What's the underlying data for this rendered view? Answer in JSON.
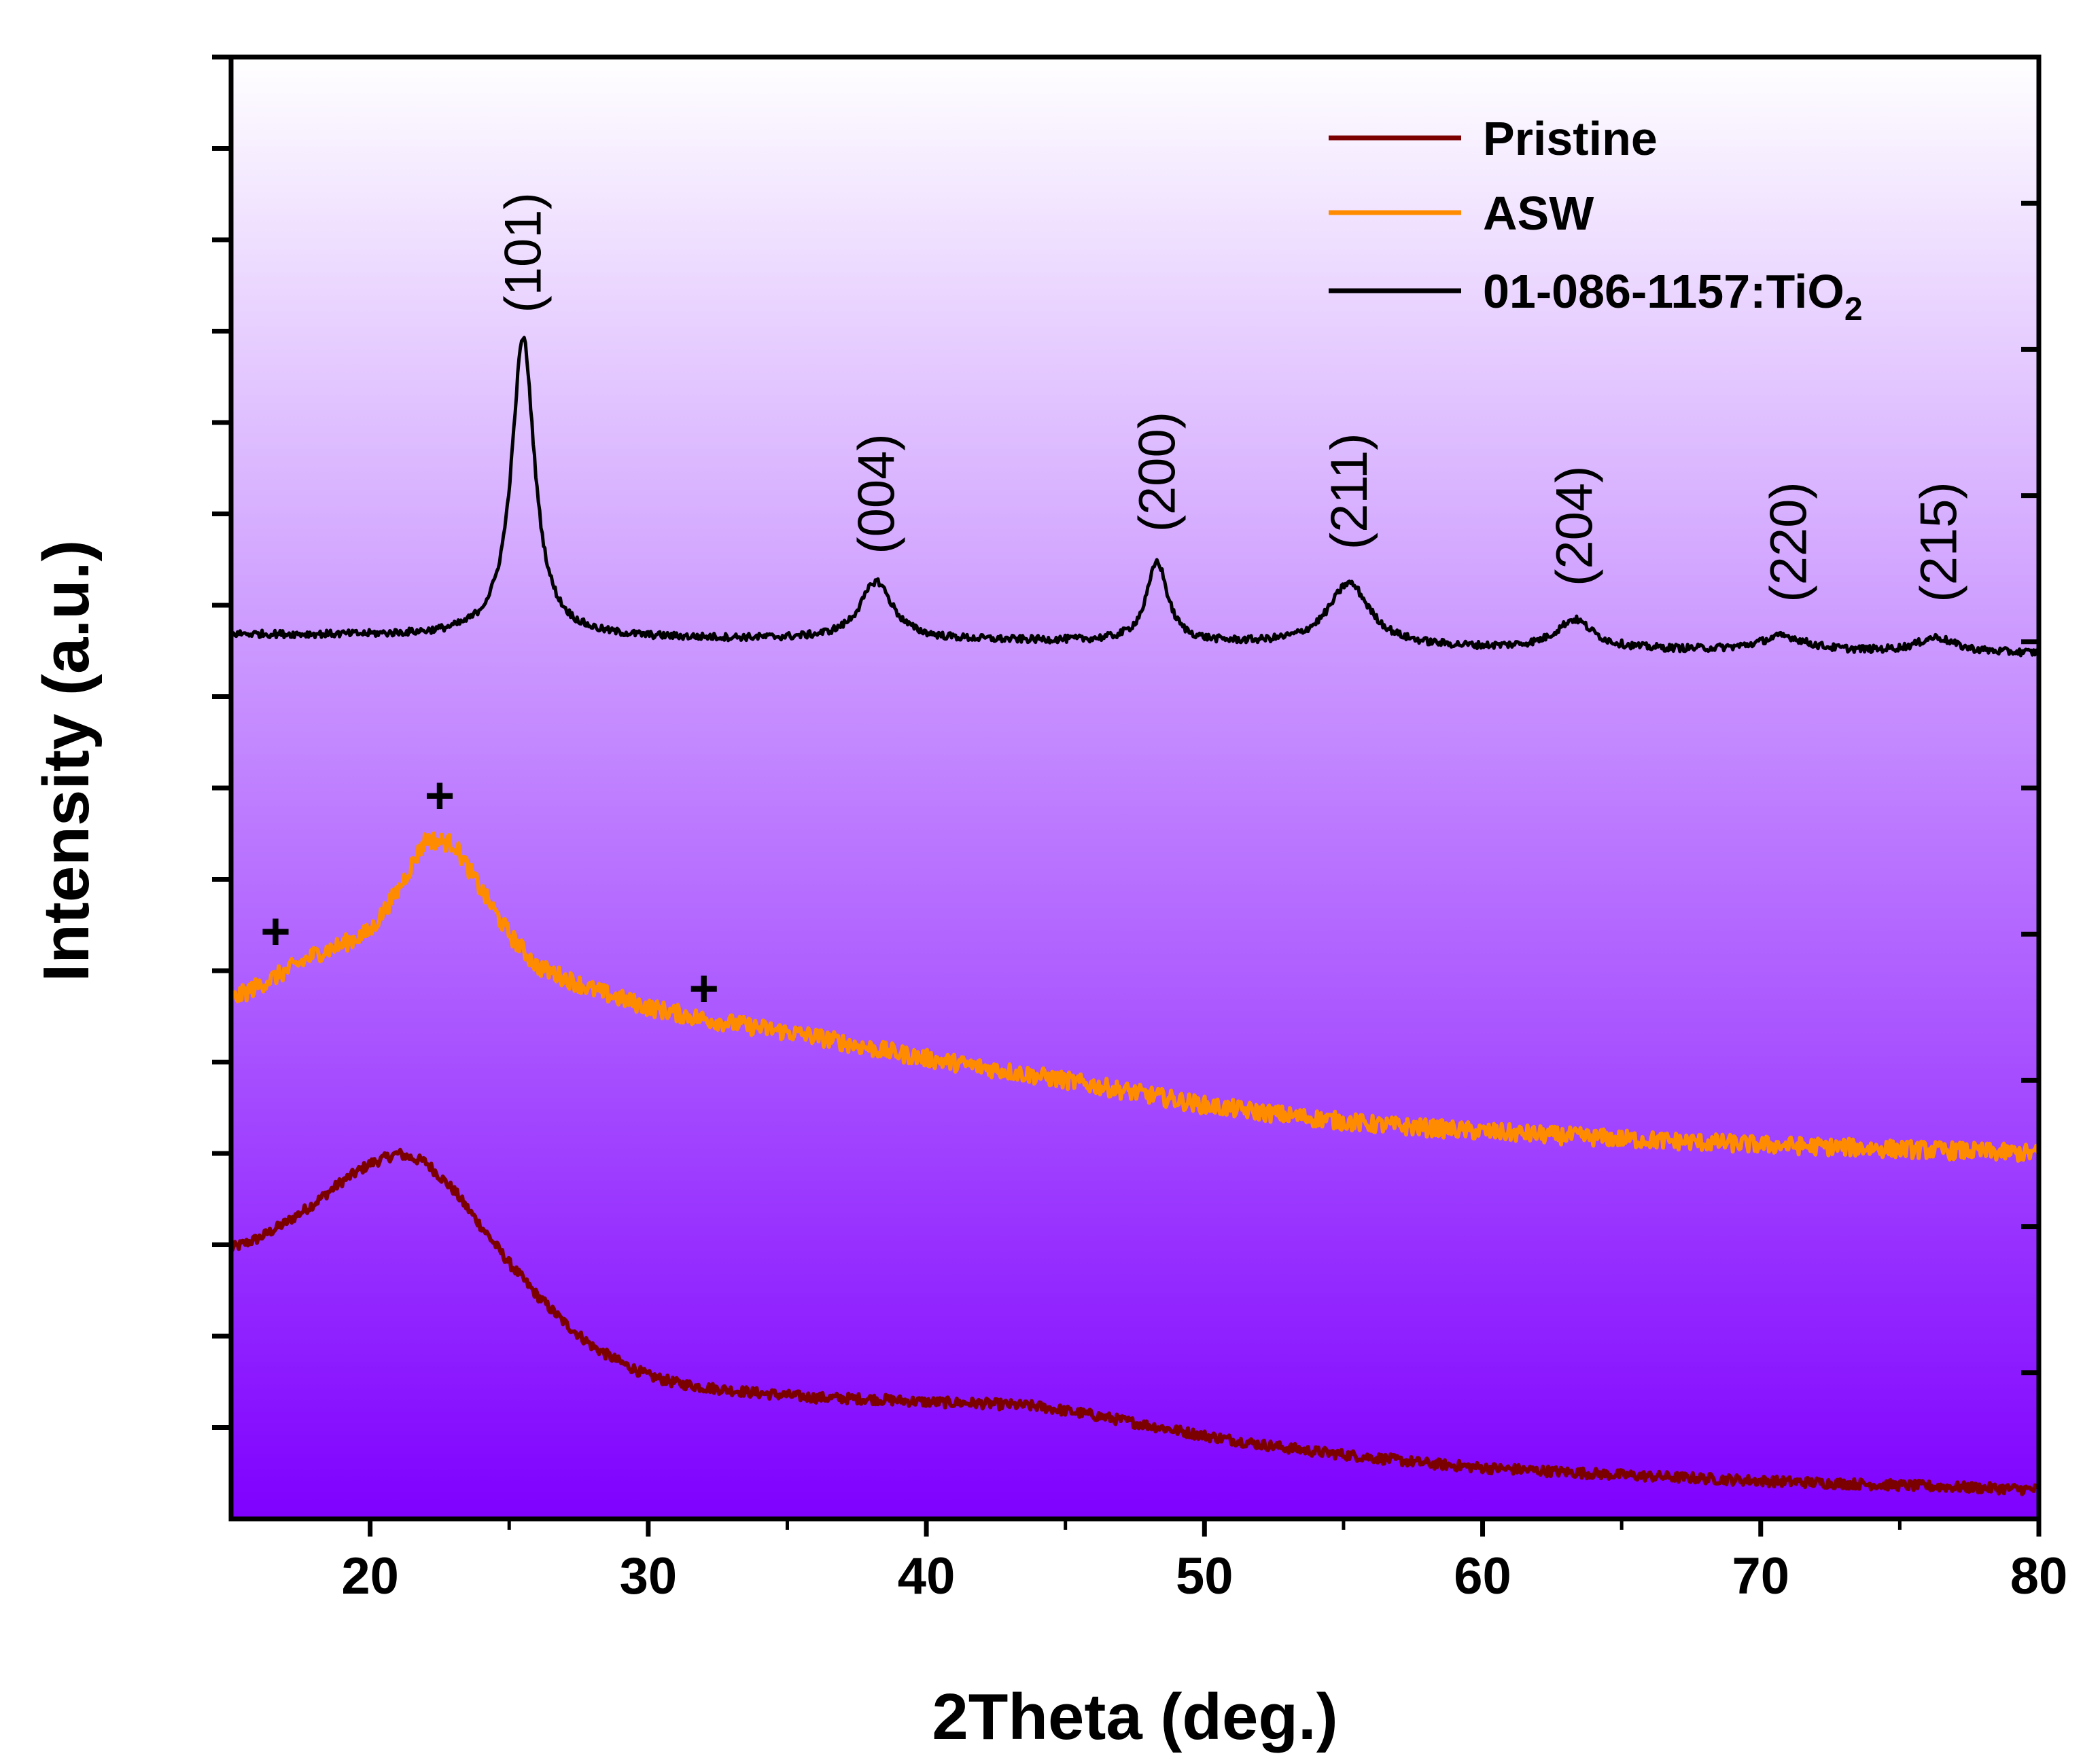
{
  "chart_data": {
    "type": "line",
    "title": "",
    "xlabel": "2Theta (deg.)",
    "ylabel": "Intensity (a.u.)",
    "xlim": [
      15,
      80
    ],
    "ylim": [
      0,
      100
    ],
    "grid": false,
    "x_ticks": [
      20,
      30,
      40,
      50,
      60,
      70,
      80
    ],
    "y_tick_labels": false,
    "background": {
      "top": "#ffffff",
      "bottom": "#7f00ff"
    },
    "legend": {
      "placement": "top-right",
      "entries": [
        {
          "label": "Pristine",
          "color": "#7b0000"
        },
        {
          "label": "ASW",
          "color": "#ff8c00"
        },
        {
          "label_main": "01-086-1157:TiO",
          "label_sub": "2",
          "color": "#000000"
        }
      ]
    },
    "series": [
      {
        "name": "Pristine",
        "color": "#7b0000",
        "baseline": [
          [
            15,
            18.5
          ],
          [
            16,
            19.2
          ],
          [
            17,
            20.3
          ],
          [
            18,
            21.6
          ],
          [
            19,
            23.1
          ],
          [
            20,
            24.3
          ],
          [
            21,
            25.0
          ],
          [
            22,
            24.4
          ],
          [
            23,
            22.5
          ],
          [
            24,
            20.0
          ],
          [
            25,
            17.5
          ],
          [
            26,
            15.3
          ],
          [
            27,
            13.4
          ],
          [
            28,
            11.8
          ],
          [
            29,
            10.7
          ],
          [
            30,
            9.8
          ],
          [
            31,
            9.3
          ],
          [
            32,
            9.0
          ],
          [
            34,
            8.6
          ],
          [
            36,
            8.3
          ],
          [
            38,
            8.2
          ],
          [
            40,
            8.0
          ],
          [
            42,
            7.9
          ],
          [
            44,
            7.7
          ],
          [
            46,
            7.1
          ],
          [
            48,
            6.4
          ],
          [
            50,
            5.7
          ],
          [
            52,
            5.1
          ],
          [
            54,
            4.6
          ],
          [
            56,
            4.2
          ],
          [
            58,
            3.8
          ],
          [
            60,
            3.5
          ],
          [
            65,
            3.0
          ],
          [
            70,
            2.6
          ],
          [
            75,
            2.3
          ],
          [
            80,
            2.0
          ]
        ],
        "noise": 0.35
      },
      {
        "name": "ASW",
        "color": "#ff8c00",
        "baseline": [
          [
            15,
            35.5
          ],
          [
            16,
            36.5
          ],
          [
            17,
            37.5
          ],
          [
            18,
            38.6
          ],
          [
            19,
            39.3
          ],
          [
            20,
            40.2
          ],
          [
            21,
            43.0
          ],
          [
            22,
            46.5
          ],
          [
            23,
            46.2
          ],
          [
            24,
            43.0
          ],
          [
            25,
            40.0
          ],
          [
            26,
            37.8
          ],
          [
            28,
            36.2
          ],
          [
            30,
            35.0
          ],
          [
            32,
            34.2
          ],
          [
            34,
            33.6
          ],
          [
            36,
            33.0
          ],
          [
            38,
            32.2
          ],
          [
            40,
            31.5
          ],
          [
            42,
            30.9
          ],
          [
            45,
            30.0
          ],
          [
            48,
            29.0
          ],
          [
            50,
            28.3
          ],
          [
            53,
            27.6
          ],
          [
            56,
            27.0
          ],
          [
            60,
            26.5
          ],
          [
            65,
            26.0
          ],
          [
            70,
            25.6
          ],
          [
            75,
            25.3
          ],
          [
            80,
            25.0
          ]
        ],
        "noise": 0.6
      },
      {
        "name": "01-086-1157:TiO2",
        "color": "#000000",
        "baseline": [
          [
            15,
            60.5
          ],
          [
            30,
            60.2
          ],
          [
            45,
            60.0
          ],
          [
            60,
            59.5
          ],
          [
            80,
            59.2
          ]
        ],
        "peaks": [
          {
            "center": 25.5,
            "height": 20.5,
            "width": 0.5
          },
          {
            "center": 38.2,
            "height": 4.0,
            "width": 0.7
          },
          {
            "center": 48.3,
            "height": 5.5,
            "width": 0.45
          },
          {
            "center": 55.2,
            "height": 4.3,
            "width": 0.9
          },
          {
            "center": 63.3,
            "height": 2.0,
            "width": 0.8
          },
          {
            "center": 70.8,
            "height": 1.0,
            "width": 1.0
          },
          {
            "center": 76.3,
            "height": 1.0,
            "width": 0.8
          }
        ],
        "noise": 0.25
      }
    ],
    "annotations": [
      {
        "text": "(101)",
        "x": 25.5,
        "y": 82.5,
        "rotation": -90
      },
      {
        "text": "(004)",
        "x": 38.2,
        "y": 66.0,
        "rotation": -90
      },
      {
        "text": "(200)",
        "x": 48.3,
        "y": 67.5,
        "rotation": -90
      },
      {
        "text": "(211)",
        "x": 55.2,
        "y": 66.3,
        "rotation": -90
      },
      {
        "text": "(204)",
        "x": 63.3,
        "y": 63.8,
        "rotation": -90
      },
      {
        "text": "(220)",
        "x": 71.0,
        "y": 62.7,
        "rotation": -90
      },
      {
        "text": "(215)",
        "x": 76.4,
        "y": 62.7,
        "rotation": -90
      },
      {
        "text": "+",
        "x": 22.5,
        "y": 49.5,
        "rotation": 0
      },
      {
        "text": "+",
        "x": 16.6,
        "y": 40.2,
        "rotation": 0
      },
      {
        "text": "+",
        "x": 32.0,
        "y": 36.3,
        "rotation": 0
      }
    ]
  }
}
